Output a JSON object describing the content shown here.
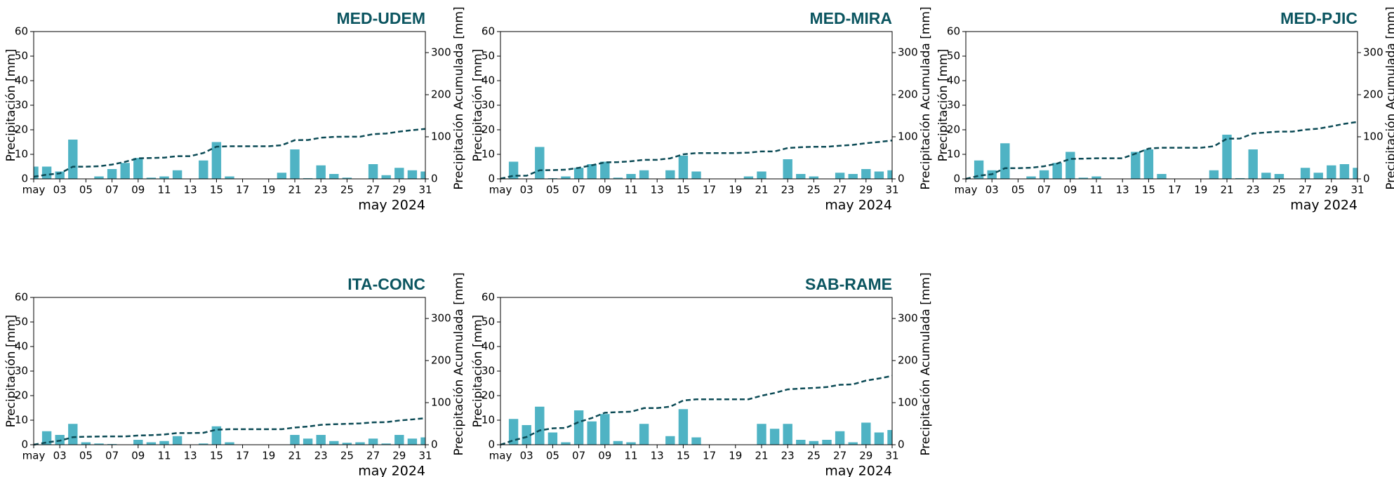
{
  "chart_data": [
    {
      "type": "bar",
      "title": "MED-UDEM",
      "xlabel": "may 2024",
      "ylabel": "Precipitación [mm]",
      "y2label": "Precipitación Acumulada [mm]",
      "x": [
        1,
        2,
        3,
        4,
        5,
        6,
        7,
        8,
        9,
        10,
        11,
        12,
        13,
        14,
        15,
        16,
        17,
        18,
        19,
        20,
        21,
        22,
        23,
        24,
        25,
        26,
        27,
        28,
        29,
        30,
        31
      ],
      "xlim": [
        1,
        31
      ],
      "xticks": [
        {
          "value": 1,
          "label": "may"
        },
        {
          "value": 3,
          "label": "03"
        },
        {
          "value": 5,
          "label": "05"
        },
        {
          "value": 7,
          "label": "07"
        },
        {
          "value": 9,
          "label": "09"
        },
        11,
        13,
        15,
        17,
        19,
        21,
        23,
        25,
        27,
        29,
        31
      ],
      "ylim": [
        0,
        60
      ],
      "yticks": [
        0,
        10,
        20,
        30,
        40,
        50,
        60
      ],
      "y2lim": [
        0,
        350
      ],
      "y2ticks": [
        0,
        100,
        200,
        300
      ],
      "series": [
        {
          "color": "#4fb3c4",
          "values": [
            5,
            5,
            3,
            16,
            0,
            1,
            4,
            6.5,
            8.5,
            0.5,
            1,
            3.5,
            0,
            7.5,
            15,
            1,
            0,
            0,
            0,
            2.5,
            12,
            0.3,
            5.5,
            2,
            0.5,
            0,
            6,
            1.5,
            4.5,
            3.5,
            3
          ]
        },
        {
          "type": "line",
          "axis": "y2",
          "color": "#0b4a55",
          "dashed": true,
          "values": [
            5,
            10,
            13,
            29,
            29,
            30,
            34,
            40.5,
            49,
            49.5,
            50.5,
            54,
            54,
            61.5,
            76.5,
            77.5,
            77.5,
            77.5,
            77.5,
            80,
            92,
            92.3,
            97.8,
            99.8,
            100.3,
            100.3,
            106.3,
            107.8,
            112.3,
            115.8,
            118.8
          ]
        }
      ]
    },
    {
      "type": "bar",
      "title": "MED-MIRA",
      "xlabel": "may 2024",
      "ylabel": "Precipitación [mm]",
      "y2label": "Precipitación Acumulada [mm]",
      "x": [
        1,
        2,
        3,
        4,
        5,
        6,
        7,
        8,
        9,
        10,
        11,
        12,
        13,
        14,
        15,
        16,
        17,
        18,
        19,
        20,
        21,
        22,
        23,
        24,
        25,
        26,
        27,
        28,
        29,
        30,
        31
      ],
      "xlim": [
        1,
        31
      ],
      "xticks": [
        {
          "value": 1,
          "label": "may"
        },
        {
          "value": 3,
          "label": "03"
        },
        {
          "value": 5,
          "label": "05"
        },
        {
          "value": 7,
          "label": "07"
        },
        {
          "value": 9,
          "label": "09"
        },
        11,
        13,
        15,
        17,
        19,
        21,
        23,
        25,
        27,
        29,
        31
      ],
      "ylim": [
        0,
        60
      ],
      "yticks": [
        0,
        10,
        20,
        30,
        40,
        50,
        60
      ],
      "y2lim": [
        0,
        350
      ],
      "y2ticks": [
        0,
        100,
        200,
        300
      ],
      "series": [
        {
          "color": "#4fb3c4",
          "values": [
            0.5,
            7,
            0,
            13,
            0.3,
            1,
            4.5,
            6,
            7,
            0.5,
            2,
            3.5,
            0,
            3.5,
            9.5,
            3,
            0,
            0,
            0,
            1,
            3,
            0,
            8,
            2,
            1,
            0,
            2.5,
            2,
            4,
            3,
            3.5
          ]
        },
        {
          "type": "line",
          "axis": "y2",
          "color": "#0b4a55",
          "dashed": true,
          "values": [
            0.5,
            7.5,
            7.5,
            20.5,
            20.8,
            21.8,
            26.3,
            32.3,
            39.3,
            39.8,
            41.8,
            45.3,
            45.3,
            48.8,
            58.3,
            61.3,
            61.3,
            61.3,
            61.3,
            62.3,
            65.3,
            65.3,
            73.3,
            75.3,
            76.3,
            76.3,
            78.8,
            80.8,
            84.8,
            87.8,
            91.3
          ]
        }
      ]
    },
    {
      "type": "bar",
      "title": "MED-PJIC",
      "xlabel": "may 2024",
      "ylabel": "Precipitación [mm]",
      "y2label": "Precipitación Acumulada [mm]",
      "x": [
        1,
        2,
        3,
        4,
        5,
        6,
        7,
        8,
        9,
        10,
        11,
        12,
        13,
        14,
        15,
        16,
        17,
        18,
        19,
        20,
        21,
        22,
        23,
        24,
        25,
        26,
        27,
        28,
        29,
        30,
        31
      ],
      "xlim": [
        1,
        31
      ],
      "xticks": [
        {
          "value": 1,
          "label": "may"
        },
        {
          "value": 3,
          "label": "03"
        },
        {
          "value": 5,
          "label": "05"
        },
        {
          "value": 7,
          "label": "07"
        },
        {
          "value": 9,
          "label": "09"
        },
        11,
        13,
        15,
        17,
        19,
        21,
        23,
        25,
        27,
        29,
        31
      ],
      "ylim": [
        0,
        60
      ],
      "yticks": [
        0,
        10,
        20,
        30,
        40,
        50,
        60
      ],
      "y2lim": [
        0,
        350
      ],
      "y2ticks": [
        0,
        100,
        200,
        300
      ],
      "series": [
        {
          "color": "#4fb3c4",
          "values": [
            0,
            7.5,
            3.5,
            14.5,
            0,
            1,
            3.5,
            6.5,
            11,
            0.5,
            1,
            0,
            0,
            11,
            12,
            2,
            0,
            0,
            0,
            3.5,
            18,
            0.3,
            12,
            2.5,
            2,
            0,
            4.5,
            2.5,
            5.5,
            6,
            4.5
          ]
        },
        {
          "type": "line",
          "axis": "y2",
          "color": "#0b4a55",
          "dashed": true,
          "values": [
            0,
            7.5,
            11,
            25.5,
            25.5,
            26.5,
            30,
            36.5,
            47.5,
            48,
            49,
            49,
            49,
            60,
            72,
            74,
            74,
            74,
            74,
            77.5,
            95.5,
            95.8,
            107.8,
            110.3,
            112.3,
            112.3,
            116.8,
            119.3,
            124.8,
            130.8,
            135.3
          ]
        }
      ]
    },
    {
      "type": "bar",
      "title": "ITA-CONC",
      "xlabel": "may 2024",
      "ylabel": "Precipitación [mm]",
      "y2label": "Precipitación Acumulada [mm]",
      "x": [
        1,
        2,
        3,
        4,
        5,
        6,
        7,
        8,
        9,
        10,
        11,
        12,
        13,
        14,
        15,
        16,
        17,
        18,
        19,
        20,
        21,
        22,
        23,
        24,
        25,
        26,
        27,
        28,
        29,
        30,
        31
      ],
      "xlim": [
        1,
        31
      ],
      "xticks": [
        {
          "value": 1,
          "label": "may"
        },
        {
          "value": 3,
          "label": "03"
        },
        {
          "value": 5,
          "label": "05"
        },
        {
          "value": 7,
          "label": "07"
        },
        {
          "value": 9,
          "label": "09"
        },
        11,
        13,
        15,
        17,
        19,
        21,
        23,
        25,
        27,
        29,
        31
      ],
      "ylim": [
        0,
        60
      ],
      "yticks": [
        0,
        10,
        20,
        30,
        40,
        50,
        60
      ],
      "y2lim": [
        0,
        350
      ],
      "y2ticks": [
        0,
        100,
        200,
        300
      ],
      "series": [
        {
          "color": "#4fb3c4",
          "values": [
            0,
            5.5,
            4,
            8.5,
            1,
            0.5,
            0.3,
            0,
            2,
            1,
            1.5,
            3.5,
            0,
            0.5,
            7.5,
            1,
            0,
            0,
            0,
            0,
            4,
            2.5,
            4,
            1.5,
            0.8,
            1,
            2.5,
            0.5,
            4,
            2.5,
            3
          ]
        },
        {
          "type": "line",
          "axis": "y2",
          "color": "#0b4a55",
          "dashed": true,
          "values": [
            0,
            5.5,
            9.5,
            18,
            19,
            19.5,
            19.8,
            19.8,
            21.8,
            22.8,
            24.3,
            27.8,
            27.8,
            28.3,
            35.8,
            36.8,
            36.8,
            36.8,
            36.8,
            36.8,
            40.8,
            43.3,
            47.3,
            48.8,
            49.6,
            50.6,
            53.1,
            53.6,
            57.6,
            60.1,
            63.1
          ]
        }
      ]
    },
    {
      "type": "bar",
      "title": "SAB-RAME",
      "xlabel": "may 2024",
      "ylabel": "Precipitación [mm]",
      "y2label": "Precipitación Acumulada [mm]",
      "x": [
        1,
        2,
        3,
        4,
        5,
        6,
        7,
        8,
        9,
        10,
        11,
        12,
        13,
        14,
        15,
        16,
        17,
        18,
        19,
        20,
        21,
        22,
        23,
        24,
        25,
        26,
        27,
        28,
        29,
        30,
        31
      ],
      "xlim": [
        1,
        31
      ],
      "xticks": [
        {
          "value": 1,
          "label": "may"
        },
        {
          "value": 3,
          "label": "03"
        },
        {
          "value": 5,
          "label": "05"
        },
        {
          "value": 7,
          "label": "07"
        },
        {
          "value": 9,
          "label": "09"
        },
        11,
        13,
        15,
        17,
        19,
        21,
        23,
        25,
        27,
        29,
        31
      ],
      "ylim": [
        0,
        60
      ],
      "yticks": [
        0,
        10,
        20,
        30,
        40,
        50,
        60
      ],
      "y2lim": [
        0,
        350
      ],
      "y2ticks": [
        0,
        100,
        200,
        300
      ],
      "series": [
        {
          "color": "#4fb3c4",
          "values": [
            0,
            10.5,
            8,
            15.5,
            5,
            1,
            14,
            9.5,
            12.5,
            1.5,
            1,
            8.5,
            0,
            3.5,
            14.5,
            3,
            0,
            0,
            0,
            0,
            8.5,
            6.5,
            8.5,
            2,
            1.5,
            2,
            5.5,
            1,
            9,
            5,
            6
          ]
        },
        {
          "type": "line",
          "axis": "y2",
          "color": "#0b4a55",
          "dashed": true,
          "values": [
            0,
            10.5,
            18.5,
            34,
            39,
            40,
            54,
            63.5,
            76,
            77.5,
            78.5,
            87,
            87,
            90.5,
            105,
            108,
            108,
            108,
            108,
            108,
            116.5,
            123,
            131.5,
            133.5,
            135,
            137,
            142.5,
            143.5,
            152.5,
            157.5,
            163.5
          ]
        }
      ]
    }
  ]
}
